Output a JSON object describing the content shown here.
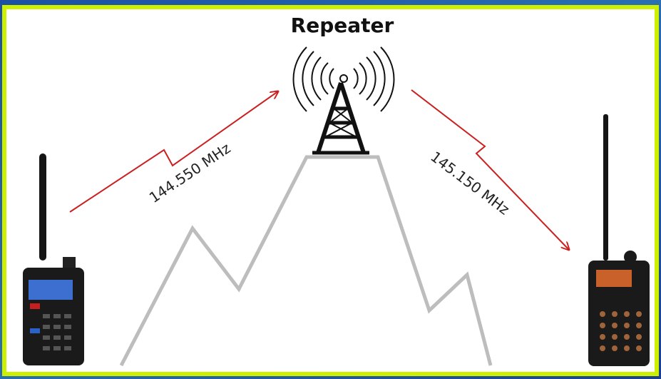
{
  "title": "Repeater",
  "links": [
    {
      "label": "144.550 MHz"
    },
    {
      "label": "145.150 MHz"
    }
  ]
}
